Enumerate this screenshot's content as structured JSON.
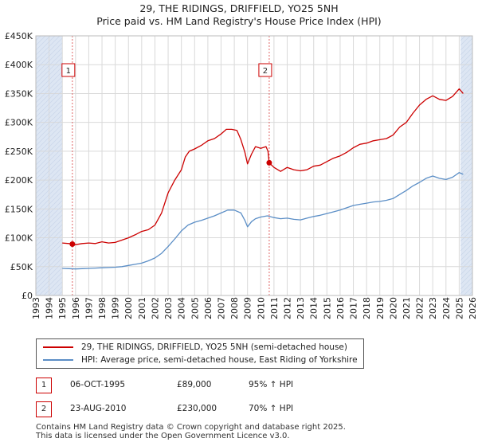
{
  "header": {
    "title_line1": "29, THE RIDINGS, DRIFFIELD, YO25 5NH",
    "title_line2": "Price paid vs. HM Land Registry's House Price Index (HPI)"
  },
  "colors": {
    "property_line": "#cc0000",
    "hpi_line": "#5b8ec6",
    "grid": "#d9d9d9",
    "shade": "#dde6f3",
    "marker": "#cc0000"
  },
  "chart_data": {
    "type": "line",
    "title": "29, THE RIDINGS, DRIFFIELD, YO25 5NH — Price paid vs. HM Land Registry's House Price Index (HPI)",
    "xlim": [
      1993,
      2026
    ],
    "ylim": [
      0,
      450000
    ],
    "x_ticks": [
      1993,
      1994,
      1995,
      1996,
      1997,
      1998,
      1999,
      2000,
      2001,
      2002,
      2003,
      2004,
      2005,
      2006,
      2007,
      2008,
      2009,
      2010,
      2011,
      2012,
      2013,
      2014,
      2015,
      2016,
      2017,
      2018,
      2019,
      2020,
      2021,
      2022,
      2023,
      2024,
      2025,
      2026
    ],
    "y_ticks": [
      {
        "value": 0,
        "label": "£0"
      },
      {
        "value": 50000,
        "label": "£50K"
      },
      {
        "value": 100000,
        "label": "£100K"
      },
      {
        "value": 150000,
        "label": "£150K"
      },
      {
        "value": 200000,
        "label": "£200K"
      },
      {
        "value": 250000,
        "label": "£250K"
      },
      {
        "value": 300000,
        "label": "£300K"
      },
      {
        "value": 350000,
        "label": "£350K"
      },
      {
        "value": 400000,
        "label": "£400K"
      },
      {
        "value": 450000,
        "label": "£450K"
      }
    ],
    "shaded_ranges": [
      [
        1993,
        1995
      ],
      [
        2025.1,
        2026
      ]
    ],
    "series": [
      {
        "name": "29, THE RIDINGS, DRIFFIELD, YO25 5NH (semi-detached house)",
        "color": "#cc0000",
        "points": [
          [
            1995.0,
            91000
          ],
          [
            1995.5,
            90000
          ],
          [
            1995.76,
            89000
          ],
          [
            1996.0,
            88000
          ],
          [
            1996.5,
            90000
          ],
          [
            1997.0,
            91000
          ],
          [
            1997.5,
            90000
          ],
          [
            1998.0,
            93000
          ],
          [
            1998.5,
            91000
          ],
          [
            1999.0,
            92000
          ],
          [
            1999.5,
            96000
          ],
          [
            2000.0,
            100000
          ],
          [
            2000.5,
            105000
          ],
          [
            2001.0,
            111000
          ],
          [
            2001.5,
            114000
          ],
          [
            2002.0,
            122000
          ],
          [
            2002.5,
            143000
          ],
          [
            2003.0,
            178000
          ],
          [
            2003.5,
            200000
          ],
          [
            2004.0,
            218000
          ],
          [
            2004.3,
            240000
          ],
          [
            2004.6,
            250000
          ],
          [
            2005.0,
            254000
          ],
          [
            2005.5,
            260000
          ],
          [
            2006.0,
            268000
          ],
          [
            2006.5,
            272000
          ],
          [
            2007.0,
            280000
          ],
          [
            2007.4,
            288000
          ],
          [
            2007.8,
            288000
          ],
          [
            2008.2,
            286000
          ],
          [
            2008.5,
            270000
          ],
          [
            2008.8,
            248000
          ],
          [
            2009.0,
            228000
          ],
          [
            2009.3,
            245000
          ],
          [
            2009.6,
            258000
          ],
          [
            2010.0,
            255000
          ],
          [
            2010.4,
            258000
          ],
          [
            2010.55,
            250000
          ],
          [
            2010.64,
            230000
          ],
          [
            2011.0,
            222000
          ],
          [
            2011.5,
            215000
          ],
          [
            2012.0,
            222000
          ],
          [
            2012.5,
            218000
          ],
          [
            2013.0,
            216000
          ],
          [
            2013.5,
            218000
          ],
          [
            2014.0,
            224000
          ],
          [
            2014.5,
            226000
          ],
          [
            2015.0,
            232000
          ],
          [
            2015.5,
            238000
          ],
          [
            2016.0,
            242000
          ],
          [
            2016.5,
            248000
          ],
          [
            2017.0,
            256000
          ],
          [
            2017.5,
            262000
          ],
          [
            2018.0,
            264000
          ],
          [
            2018.5,
            268000
          ],
          [
            2019.0,
            270000
          ],
          [
            2019.5,
            272000
          ],
          [
            2020.0,
            278000
          ],
          [
            2020.5,
            292000
          ],
          [
            2021.0,
            300000
          ],
          [
            2021.5,
            316000
          ],
          [
            2022.0,
            330000
          ],
          [
            2022.5,
            340000
          ],
          [
            2023.0,
            346000
          ],
          [
            2023.5,
            340000
          ],
          [
            2024.0,
            338000
          ],
          [
            2024.5,
            345000
          ],
          [
            2025.0,
            358000
          ],
          [
            2025.3,
            350000
          ]
        ]
      },
      {
        "name": "HPI: Average price, semi-detached house, East Riding of Yorkshire",
        "color": "#5b8ec6",
        "points": [
          [
            1995.0,
            47000
          ],
          [
            1995.5,
            46500
          ],
          [
            1996.0,
            46000
          ],
          [
            1996.5,
            46500
          ],
          [
            1997.0,
            47000
          ],
          [
            1997.5,
            47500
          ],
          [
            1998.0,
            48000
          ],
          [
            1998.5,
            48500
          ],
          [
            1999.0,
            49000
          ],
          [
            1999.5,
            50000
          ],
          [
            2000.0,
            52000
          ],
          [
            2000.5,
            54000
          ],
          [
            2001.0,
            56000
          ],
          [
            2001.5,
            60000
          ],
          [
            2002.0,
            65000
          ],
          [
            2002.5,
            73000
          ],
          [
            2003.0,
            85000
          ],
          [
            2003.5,
            98000
          ],
          [
            2004.0,
            112000
          ],
          [
            2004.5,
            122000
          ],
          [
            2005.0,
            127000
          ],
          [
            2005.5,
            130000
          ],
          [
            2006.0,
            134000
          ],
          [
            2006.5,
            138000
          ],
          [
            2007.0,
            143000
          ],
          [
            2007.5,
            148000
          ],
          [
            2008.0,
            148000
          ],
          [
            2008.5,
            143000
          ],
          [
            2008.8,
            130000
          ],
          [
            2009.0,
            119000
          ],
          [
            2009.3,
            128000
          ],
          [
            2009.6,
            133000
          ],
          [
            2010.0,
            136000
          ],
          [
            2010.5,
            138000
          ],
          [
            2011.0,
            135000
          ],
          [
            2011.5,
            133000
          ],
          [
            2012.0,
            134000
          ],
          [
            2012.5,
            132000
          ],
          [
            2013.0,
            131000
          ],
          [
            2013.5,
            134000
          ],
          [
            2014.0,
            137000
          ],
          [
            2014.5,
            139000
          ],
          [
            2015.0,
            142000
          ],
          [
            2015.5,
            145000
          ],
          [
            2016.0,
            148000
          ],
          [
            2016.5,
            152000
          ],
          [
            2017.0,
            156000
          ],
          [
            2017.5,
            158000
          ],
          [
            2018.0,
            160000
          ],
          [
            2018.5,
            162000
          ],
          [
            2019.0,
            163000
          ],
          [
            2019.5,
            165000
          ],
          [
            2020.0,
            168000
          ],
          [
            2020.5,
            175000
          ],
          [
            2021.0,
            182000
          ],
          [
            2021.5,
            190000
          ],
          [
            2022.0,
            196000
          ],
          [
            2022.5,
            203000
          ],
          [
            2023.0,
            207000
          ],
          [
            2023.5,
            203000
          ],
          [
            2024.0,
            201000
          ],
          [
            2024.5,
            205000
          ],
          [
            2025.0,
            213000
          ],
          [
            2025.3,
            210000
          ]
        ]
      }
    ],
    "sales": [
      {
        "id": "1",
        "x": 1995.76,
        "y": 89000
      },
      {
        "id": "2",
        "x": 2010.64,
        "y": 230000
      }
    ]
  },
  "legend": {
    "property_label": "29, THE RIDINGS, DRIFFIELD, YO25 5NH (semi-detached house)",
    "hpi_label": "HPI: Average price, semi-detached house, East Riding of Yorkshire"
  },
  "sales_table": [
    {
      "id": "1",
      "date": "06-OCT-1995",
      "price": "£89,000",
      "hpi": "95% ↑ HPI"
    },
    {
      "id": "2",
      "date": "23-AUG-2010",
      "price": "£230,000",
      "hpi": "70% ↑ HPI"
    }
  ],
  "footer": {
    "line1": "Contains HM Land Registry data © Crown copyright and database right 2025.",
    "line2": "This data is licensed under the Open Government Licence v3.0."
  }
}
